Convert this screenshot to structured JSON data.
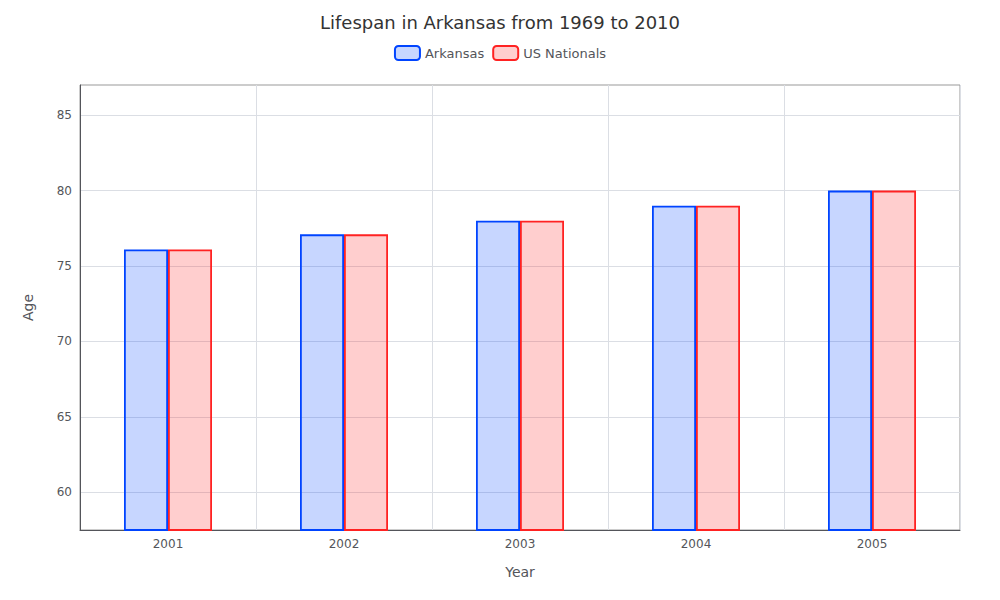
{
  "chart_data": {
    "type": "bar",
    "title": "Lifespan in Arkansas from 1969 to 2010",
    "xlabel": "Year",
    "ylabel": "Age",
    "categories": [
      "2001",
      "2002",
      "2003",
      "2004",
      "2005"
    ],
    "series": [
      {
        "name": "Arkansas",
        "color": "#0044ff",
        "values": [
          76.1,
          77.1,
          78.0,
          79.0,
          80.0
        ]
      },
      {
        "name": "US Nationals",
        "color": "#ff2222",
        "values": [
          76.1,
          77.1,
          78.0,
          79.0,
          80.0
        ]
      }
    ],
    "ylim": [
      57.5,
      87
    ],
    "yticks": [
      60,
      65,
      70,
      75,
      80,
      85
    ],
    "grid": true,
    "legend": "top"
  }
}
